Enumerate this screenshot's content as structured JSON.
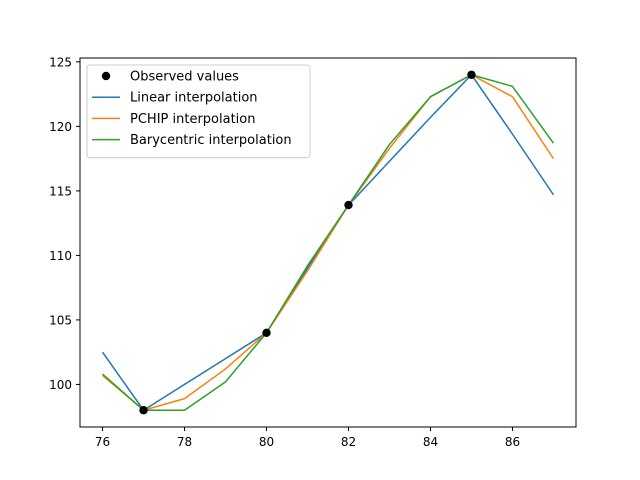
{
  "chart_data": {
    "type": "line",
    "title": "",
    "xlabel": "",
    "ylabel": "",
    "xlim": [
      75.45,
      87.55
    ],
    "ylim": [
      96.7,
      125.3
    ],
    "x_ticks": [
      76,
      78,
      80,
      82,
      84,
      86
    ],
    "y_ticks": [
      100,
      105,
      110,
      115,
      120,
      125
    ],
    "x_tick_labels": [
      "76",
      "78",
      "80",
      "82",
      "84",
      "86"
    ],
    "y_tick_labels": [
      "100",
      "105",
      "110",
      "115",
      "120",
      "125"
    ],
    "grid": false,
    "legend_position": "top-left",
    "series": [
      {
        "name": "Observed values",
        "kind": "scatter",
        "color": "#000000",
        "x": [
          77,
          80,
          82,
          85
        ],
        "y": [
          98,
          104,
          113.9,
          124
        ]
      },
      {
        "name": "Linear interpolation",
        "kind": "line",
        "color": "#1f77b4",
        "x": [
          76,
          77,
          78,
          79,
          80,
          81,
          82,
          83,
          84,
          85,
          86,
          87
        ],
        "y": [
          102.5,
          98,
          100,
          102,
          104,
          109,
          113.9,
          117.3,
          120.7,
          124,
          119.4,
          114.7
        ]
      },
      {
        "name": "PCHIP interpolation",
        "kind": "line",
        "color": "#ff7f0e",
        "x": [
          76,
          77,
          78,
          79,
          80,
          81,
          82,
          83,
          84,
          85,
          86,
          87
        ],
        "y": [
          100.7,
          98,
          98.9,
          101.2,
          104,
          108.8,
          113.9,
          118.3,
          122.3,
          124,
          122.3,
          117.5
        ]
      },
      {
        "name": "Barycentric interpolation",
        "kind": "line",
        "color": "#2ca02c",
        "x": [
          76,
          77,
          78,
          79,
          80,
          81,
          82,
          83,
          84,
          85,
          86,
          87
        ],
        "y": [
          100.8,
          98,
          98,
          100.2,
          104,
          109.2,
          113.9,
          118.6,
          122.3,
          124,
          123.1,
          118.7
        ]
      }
    ]
  }
}
